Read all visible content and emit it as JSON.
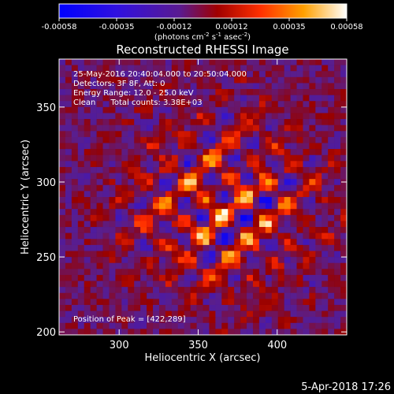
{
  "chart_data": {
    "type": "heatmap",
    "title": "Reconstructed RHESSI Image",
    "xlabel": "Heliocentric X (arcsec)",
    "ylabel": "Heliocentric Y (arcsec)",
    "xlim": [
      262,
      444
    ],
    "ylim": [
      198,
      382
    ],
    "x_ticks": [
      300,
      350,
      400
    ],
    "y_ticks": [
      200,
      250,
      300,
      350
    ],
    "colorbar": {
      "ticks": [
        "-0.00058",
        "-0.00035",
        "-0.00012",
        "0.00012",
        "0.00035",
        "0.00058"
      ],
      "range": [
        -0.00058,
        0.00058
      ],
      "unit_label_parts": [
        "(photons cm",
        "-2",
        " s",
        "-1",
        " asec",
        "-2",
        ")"
      ],
      "colormap": [
        "#0000ff",
        "#5020c0",
        "#900000",
        "#ff2000",
        "#ff9000",
        "#ffffff"
      ]
    },
    "annotations": [
      "25-May-2016 20:40:04.000 to 20:50:04.000",
      "Detectors: 3F 8F, Att: 0",
      "Energy Range: 12.0 - 25.0 keV",
      "Clean      Total counts: 3.38E+03"
    ],
    "peak_label": "Position of Peak = [422,289]",
    "peak": [
      422,
      289
    ]
  },
  "footer_date": "5-Apr-2018 17:26"
}
